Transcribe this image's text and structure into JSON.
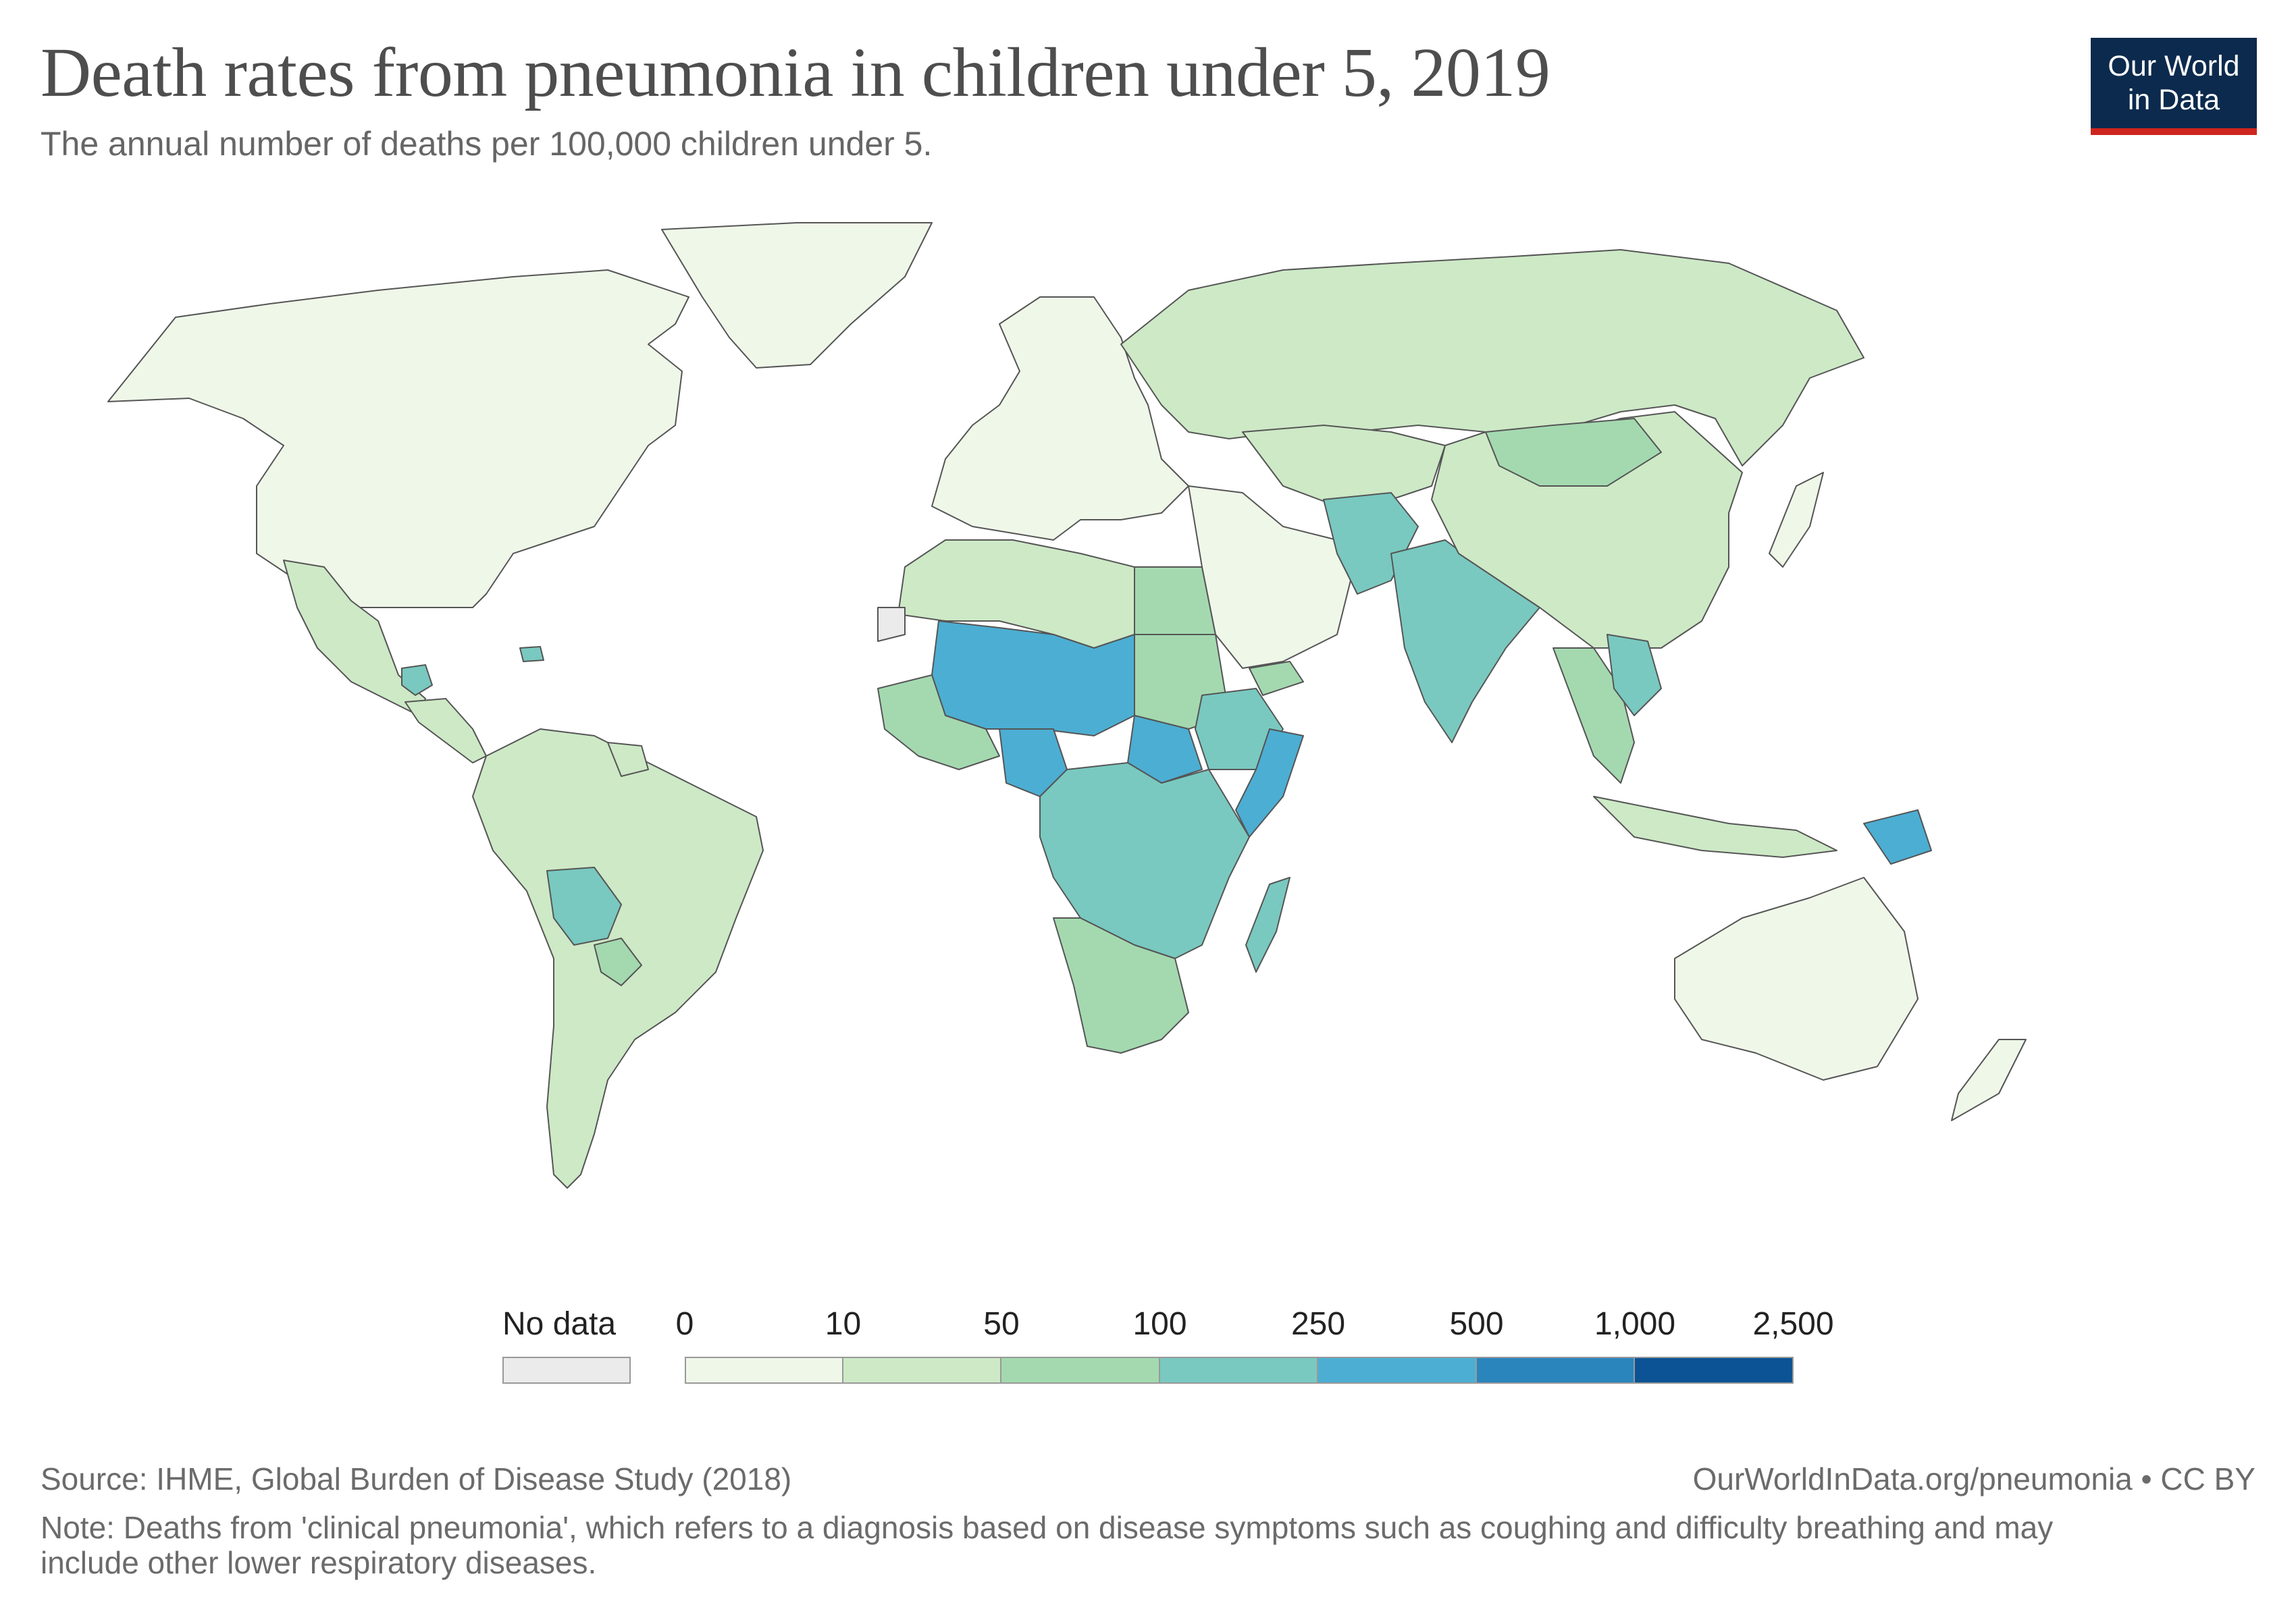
{
  "header": {
    "title": "Death rates from pneumonia in children under 5, 2019",
    "subtitle": "The annual number of deaths per 100,000 children under 5."
  },
  "logo": {
    "line1": "Our World",
    "line2": "in Data"
  },
  "legend": {
    "no_data_label": "No data",
    "no_data_color": "#ebebeb",
    "ticks": [
      "0",
      "10",
      "50",
      "100",
      "250",
      "500",
      "1,000",
      "2,500"
    ],
    "bins": [
      {
        "from": 0,
        "to": 10,
        "color": "#eff7e9"
      },
      {
        "from": 10,
        "to": 50,
        "color": "#cde9c6"
      },
      {
        "from": 50,
        "to": 100,
        "color": "#a4d9b0"
      },
      {
        "from": 100,
        "to": 250,
        "color": "#79c9c0"
      },
      {
        "from": 250,
        "to": 500,
        "color": "#4caed3"
      },
      {
        "from": 500,
        "to": 1000,
        "color": "#2a85bd"
      },
      {
        "from": 1000,
        "to": 2500,
        "color": "#0b5394"
      }
    ]
  },
  "footer": {
    "source": "Source: IHME, Global Burden of Disease Study (2018)",
    "url": "OurWorldInData.org/pneumonia • CC BY",
    "note_line1": "Note: Deaths from 'clinical pneumonia', which refers to a diagnosis based on disease symptoms such as coughing and difficulty breathing and may",
    "note_line2": "include other lower respiratory diseases."
  },
  "map_regions": [
    {
      "name": "north-america",
      "bin": 0
    },
    {
      "name": "greenland",
      "bin": 0
    },
    {
      "name": "mexico",
      "bin": 1
    },
    {
      "name": "central-america",
      "bin": 1
    },
    {
      "name": "guatemala",
      "bin": 3
    },
    {
      "name": "haiti",
      "bin": 3
    },
    {
      "name": "south-america",
      "bin": 1
    },
    {
      "name": "bolivia",
      "bin": 3
    },
    {
      "name": "paraguay",
      "bin": 2
    },
    {
      "name": "guyana-region",
      "bin": 1
    },
    {
      "name": "europe",
      "bin": 0
    },
    {
      "name": "russia",
      "bin": 1
    },
    {
      "name": "north-africa",
      "bin": 1
    },
    {
      "name": "egypt",
      "bin": 2
    },
    {
      "name": "sahel",
      "bin": 4
    },
    {
      "name": "west-africa-coast",
      "bin": 2
    },
    {
      "name": "nigeria",
      "bin": 4
    },
    {
      "name": "sudan",
      "bin": 2
    },
    {
      "name": "south-sudan",
      "bin": 4
    },
    {
      "name": "ethiopia",
      "bin": 3
    },
    {
      "name": "somalia",
      "bin": 4
    },
    {
      "name": "central-africa",
      "bin": 3
    },
    {
      "name": "southern-africa",
      "bin": 2
    },
    {
      "name": "madagascar",
      "bin": 3
    },
    {
      "name": "middle-east",
      "bin": 0
    },
    {
      "name": "yemen",
      "bin": 2
    },
    {
      "name": "central-asia",
      "bin": 1
    },
    {
      "name": "afghanistan-pakistan",
      "bin": 3
    },
    {
      "name": "india",
      "bin": 3
    },
    {
      "name": "china",
      "bin": 1
    },
    {
      "name": "mongolia",
      "bin": 2
    },
    {
      "name": "southeast-asia",
      "bin": 2
    },
    {
      "name": "laos-cambodia",
      "bin": 3
    },
    {
      "name": "indonesia",
      "bin": 1
    },
    {
      "name": "papua-new-guinea",
      "bin": 4
    },
    {
      "name": "japan",
      "bin": 0
    },
    {
      "name": "australia",
      "bin": 0
    },
    {
      "name": "new-zealand",
      "bin": 0
    },
    {
      "name": "western-sahara",
      "bin": null
    }
  ]
}
